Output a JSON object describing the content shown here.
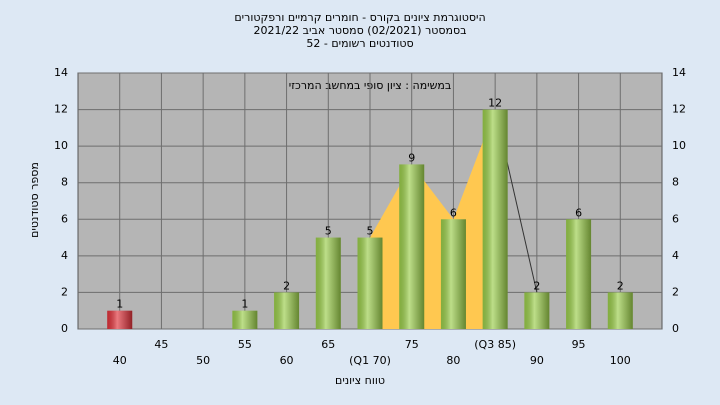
{
  "chart_data": {
    "type": "bar",
    "title": [
      "היסטוגרמת ציונים בקורס - חומרים קרמיים ורפקטורים",
      "בסמסטר  (02/2021)  סמסטר אביב 2021/22",
      "סטודנטים רשומים - 52"
    ],
    "annotation": "במשימה : ציון סופי במחשב המרכזי",
    "x_label": "טווח ציונים",
    "y_label": "מספר סטודנטים",
    "categories": [
      "40",
      "45",
      "50",
      "55",
      "60",
      "65",
      "(Q1 70)",
      "75",
      "80",
      "(Q3 85)",
      "90",
      "95",
      "100"
    ],
    "values": [
      1,
      0,
      0,
      1,
      2,
      5,
      5,
      9,
      6,
      12,
      2,
      6,
      2
    ],
    "colors": [
      "#e0323a",
      "#9acd4a",
      "#9acd4a",
      "#9acd4a",
      "#9acd4a",
      "#9acd4a",
      "#9acd4a",
      "#9acd4a",
      "#9acd4a",
      "#9acd4a",
      "#9acd4a",
      "#9acd4a",
      "#9acd4a"
    ],
    "band_color": "#ffc850",
    "ylim": [
      0,
      14
    ],
    "yticks": [
      0,
      2,
      4,
      6,
      8,
      10,
      12,
      14
    ],
    "grid": true
  }
}
